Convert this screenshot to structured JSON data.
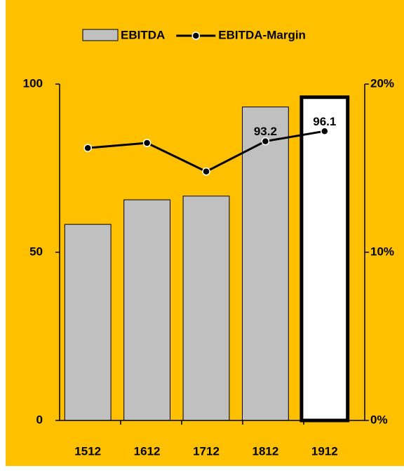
{
  "chart_data": {
    "type": "bar_line",
    "categories": [
      "1512",
      "1612",
      "1712",
      "1812",
      "1912"
    ],
    "series": [
      {
        "name": "EBITDA",
        "type": "bar",
        "color": "#c0c0c0",
        "colors": [
          "#c0c0c0",
          "#c0c0c0",
          "#c0c0c0",
          "#c0c0c0",
          "#ffffff"
        ],
        "edge_widths": [
          1,
          1,
          1,
          1,
          5
        ],
        "values": [
          58.3,
          65.6,
          66.7,
          93.2,
          96.1
        ],
        "value_labels": [
          null,
          null,
          null,
          "93.2",
          "96.1"
        ]
      },
      {
        "name": "EBITDA-Margin",
        "type": "line",
        "axis": "y2",
        "color": "#000000",
        "values": [
          16.2,
          16.5,
          14.8,
          16.6,
          17.2
        ]
      }
    ],
    "ylim": [
      0,
      100
    ],
    "yticks": [
      0,
      50,
      100
    ],
    "y2lim": [
      0,
      20
    ],
    "y2ticks": [
      {
        "value": 0,
        "label": "0%"
      },
      {
        "value": 10,
        "label": "10%"
      },
      {
        "value": 20,
        "label": "20%"
      }
    ],
    "legend": "top",
    "background": "#ffc000"
  }
}
